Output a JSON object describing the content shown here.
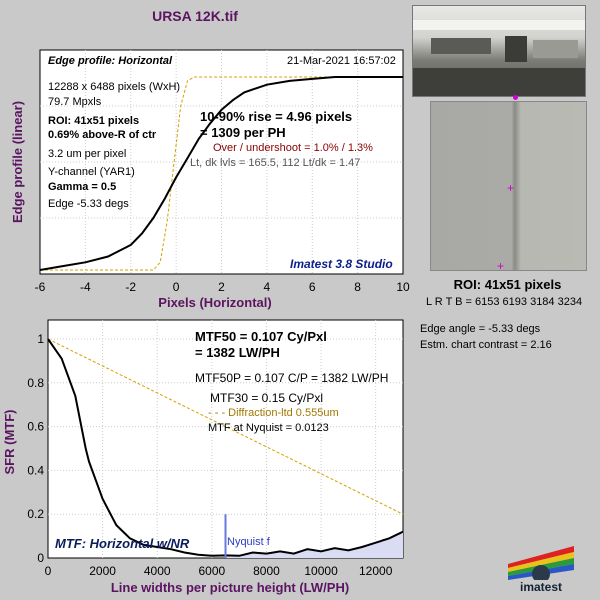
{
  "title": "URSA 12K.tif",
  "edge_panel": {
    "heading": "Edge profile: Horizontal",
    "timestamp": "21-Mar-2021 16:57:02",
    "lines": [
      "12288 x 6488 pixels (WxH)",
      "79.7 Mpxls"
    ],
    "roi_line": "ROI:  41x51 pixels",
    "pct_line": "0.69% above-R of ctr",
    "um_line": "3.2 um per pixel",
    "channel_line": "Y-channel  (YAR1)",
    "gamma_line": "Gamma = 0.5",
    "edge_line": "Edge -5.33 degs",
    "rise_line1": "10-90% rise = 4.96 pixels",
    "rise_line2": "= 1309 per PH",
    "overshoot": "Over / undershoot = 1.0% / 1.3%",
    "lt_dk": "Lt, dk lvls = 165.5, 112   Lt/dk = 1.47",
    "studio": "Imatest 3.8 Studio"
  },
  "mtf_panel": {
    "mtf50_line1": "MTF50 = 0.107 Cy/Pxl",
    "mtf50_line2": "= 1382 LW/PH",
    "mtf50p": "MTF50P = 0.107 C/P = 1382 LW/PH",
    "mtf30": "MTF30 = 0.15 Cy/Pxl",
    "diffraction": "- - - Diffraction-ltd  0.555um",
    "nyquist_mtf": "MTF at Nyquist = 0.0123",
    "footer": "MTF: Horizontal w/NR",
    "nyquist_label": "Nyquist f"
  },
  "roi": {
    "label": "ROI:  41x51 pixels",
    "lrtb": "L R  T B = 6153 6193  3184 3234"
  },
  "side_info": {
    "edge_angle": "Edge angle = -5.33 degs",
    "chart_contrast": "Estm. chart contrast = 2.16"
  },
  "logo_text": "imatest",
  "colors": {
    "title": "#5a1460",
    "diffraction": "#d4a000",
    "nyquist": "#6a78e0",
    "overshoot": "#8b0000",
    "studio": "#0a1e8c"
  },
  "chart_data": [
    {
      "type": "line",
      "title": "Edge profile: Horizontal",
      "xlabel": "Pixels (Horizontal)",
      "ylabel": "Edge profile (linear)",
      "xlim": [
        -6,
        10
      ],
      "x_ticks": [
        "-6",
        "-4",
        "-2",
        "0",
        "2",
        "4",
        "6",
        "8",
        "10"
      ],
      "grid": true,
      "series": [
        {
          "x": [
            -6,
            -5,
            -4,
            -3,
            -2,
            -1.5,
            -1,
            -0.5,
            0,
            0.5,
            1,
            1.5,
            2,
            2.5,
            3,
            4,
            5,
            6,
            7,
            8,
            9,
            10
          ],
          "y": [
            0.0,
            0.02,
            0.04,
            0.07,
            0.13,
            0.19,
            0.27,
            0.37,
            0.48,
            0.58,
            0.68,
            0.76,
            0.83,
            0.88,
            0.92,
            0.96,
            0.98,
            0.99,
            1.0,
            1.0,
            1.0,
            1.0
          ]
        },
        {
          "x": [
            -6,
            -1,
            -0.7,
            -0.4,
            -0.1,
            0.2,
            0.5,
            0.8,
            10
          ],
          "y": [
            0.0,
            0.0,
            0.04,
            0.25,
            0.55,
            0.85,
            0.98,
            1.0,
            1.0
          ]
        }
      ]
    },
    {
      "type": "line",
      "title": "MTF: Horizontal w/NR",
      "xlabel": "Line widths per picture height (LW/PH)",
      "ylabel": "SFR (MTF)",
      "xlim": [
        0,
        13000
      ],
      "ylim": [
        0,
        1
      ],
      "x_ticks": [
        "0",
        "2000",
        "4000",
        "6000",
        "8000",
        "10000",
        "12000"
      ],
      "y_ticks": [
        "0",
        "0.2",
        "0.4",
        "0.6",
        "0.8",
        "1"
      ],
      "grid": true,
      "series": [
        {
          "x": [
            0,
            500,
            1000,
            1382,
            1500,
            2000,
            2500,
            3000,
            3500,
            4000,
            4500,
            5000,
            5500,
            6000,
            6500,
            7000,
            7500,
            8000,
            8500,
            9000,
            9500,
            10000,
            10500,
            11000,
            11500,
            12000,
            12500,
            13000
          ],
          "y": [
            1.0,
            0.91,
            0.74,
            0.5,
            0.44,
            0.27,
            0.15,
            0.09,
            0.06,
            0.05,
            0.04,
            0.025,
            0.015,
            0.01,
            0.012,
            0.01,
            0.025,
            0.02,
            0.03,
            0.02,
            0.04,
            0.03,
            0.045,
            0.035,
            0.05,
            0.07,
            0.09,
            0.12
          ]
        },
        {
          "x": [
            0,
            13000
          ],
          "y": [
            1.0,
            0.2
          ]
        }
      ],
      "nyquist_x": 6500,
      "nyquist_y": 0.2
    }
  ]
}
